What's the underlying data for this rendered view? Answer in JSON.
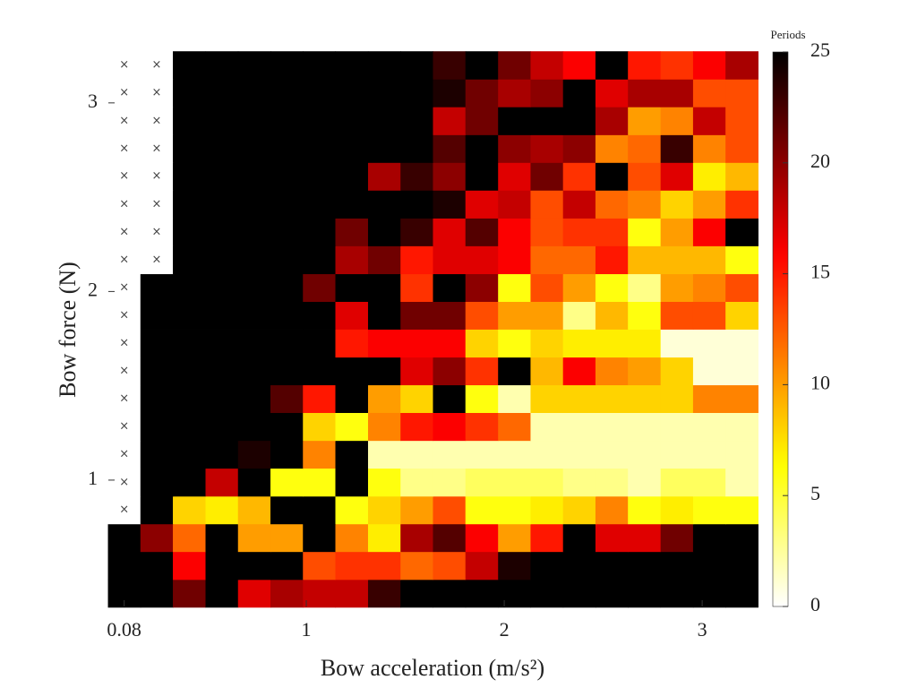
{
  "chart_data": {
    "type": "heatmap",
    "xlabel": "Bow acceleration (m/s²)",
    "ylabel": "Bow force (N)",
    "colorbar_title": "Periods",
    "colormap": "hot",
    "colormap_reversed": true,
    "x": [
      0.08,
      0.244,
      0.408,
      0.573,
      0.737,
      0.901,
      1.065,
      1.229,
      1.394,
      1.558,
      1.722,
      1.886,
      2.051,
      2.215,
      2.379,
      2.543,
      2.707,
      2.872,
      3.036,
      3.2
    ],
    "y": [
      0.4,
      0.547,
      0.695,
      0.842,
      0.989,
      1.137,
      1.284,
      1.432,
      1.579,
      1.726,
      1.874,
      2.021,
      2.168,
      2.316,
      2.463,
      2.611,
      2.758,
      2.905,
      3.053,
      3.2
    ],
    "z": [
      [
        25,
        25,
        21,
        25,
        17,
        19,
        18,
        18,
        23,
        25,
        25,
        25,
        25,
        25,
        25,
        25,
        25,
        25,
        25,
        25
      ],
      [
        25,
        25,
        16,
        25,
        25,
        25,
        13,
        14,
        14,
        12,
        13,
        18,
        24,
        25,
        25,
        25,
        25,
        25,
        25,
        25
      ],
      [
        25,
        20,
        12,
        25,
        10,
        10,
        25,
        11,
        7,
        19,
        22,
        16,
        10,
        15,
        25,
        17,
        17,
        21,
        25,
        25
      ],
      [
        null,
        25,
        8,
        7,
        9,
        25,
        25,
        6,
        8,
        10,
        13,
        6,
        6,
        7,
        8,
        11,
        6,
        7,
        6,
        6
      ],
      [
        null,
        25,
        25,
        18,
        25,
        6,
        6,
        25,
        6,
        3,
        3,
        4,
        4,
        4,
        3,
        3,
        2,
        4,
        4,
        2
      ],
      [
        null,
        25,
        25,
        25,
        24,
        25,
        11,
        25,
        2,
        2,
        2,
        2,
        2,
        2,
        2,
        2,
        2,
        2,
        2,
        2
      ],
      [
        null,
        25,
        25,
        25,
        25,
        25,
        8,
        6,
        11,
        15,
        16,
        14,
        12,
        2,
        2,
        2,
        2,
        2,
        2,
        2
      ],
      [
        null,
        25,
        25,
        25,
        25,
        22,
        15,
        25,
        10,
        8,
        25,
        6,
        2,
        8,
        8,
        8,
        8,
        8,
        11,
        11
      ],
      [
        null,
        25,
        25,
        25,
        25,
        25,
        25,
        25,
        25,
        17,
        20,
        14,
        25,
        9,
        16,
        11,
        10,
        8,
        1,
        1
      ],
      [
        null,
        25,
        25,
        25,
        25,
        25,
        25,
        15,
        16,
        16,
        16,
        8,
        6,
        8,
        7,
        7,
        7,
        1,
        1,
        1
      ],
      [
        null,
        25,
        25,
        25,
        25,
        25,
        25,
        17,
        25,
        21,
        21,
        13,
        10,
        10,
        3,
        9,
        6,
        13,
        13,
        8
      ],
      [
        null,
        25,
        25,
        25,
        25,
        25,
        21,
        25,
        25,
        14,
        25,
        20,
        6,
        13,
        10,
        6,
        3,
        10,
        11,
        13
      ],
      [
        null,
        null,
        25,
        25,
        25,
        25,
        25,
        19,
        21,
        15,
        17,
        17,
        16,
        12,
        12,
        15,
        9,
        9,
        9,
        6
      ],
      [
        null,
        null,
        25,
        25,
        25,
        25,
        25,
        21,
        25,
        23,
        17,
        22,
        16,
        13,
        14,
        14,
        6,
        10,
        16,
        25
      ],
      [
        null,
        null,
        25,
        25,
        25,
        25,
        25,
        25,
        25,
        25,
        24,
        17,
        18,
        13,
        18,
        12,
        11,
        8,
        10,
        14
      ],
      [
        null,
        null,
        25,
        25,
        25,
        25,
        25,
        25,
        19,
        23,
        20,
        25,
        17,
        21,
        14,
        25,
        13,
        17,
        7,
        9
      ],
      [
        null,
        null,
        25,
        25,
        25,
        25,
        25,
        25,
        25,
        25,
        22,
        25,
        20,
        19,
        20,
        11,
        12,
        23,
        11,
        13
      ],
      [
        null,
        null,
        25,
        25,
        25,
        25,
        25,
        25,
        25,
        25,
        18,
        21,
        25,
        25,
        25,
        19,
        10,
        11,
        18,
        13
      ],
      [
        null,
        null,
        25,
        25,
        25,
        25,
        25,
        25,
        25,
        25,
        24,
        21,
        19,
        20,
        25,
        17,
        19,
        19,
        13,
        13
      ],
      [
        null,
        null,
        25,
        25,
        25,
        25,
        25,
        25,
        25,
        25,
        23,
        25,
        21,
        18,
        16,
        25,
        15,
        14,
        16,
        19
      ]
    ],
    "xlim": [
      0,
      3.28
    ],
    "ylim": [
      0.33,
      3.27
    ],
    "xticks": [
      0.08,
      1,
      2,
      3
    ],
    "yticks": [
      1,
      2,
      3
    ],
    "clim": [
      0,
      25
    ],
    "cticks": [
      0,
      5,
      10,
      15,
      20,
      25
    ]
  }
}
